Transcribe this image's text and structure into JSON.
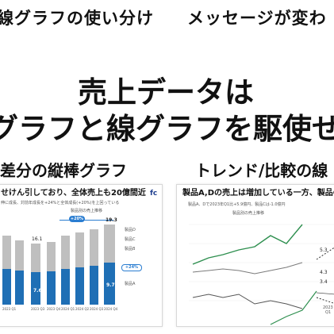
{
  "banner": {
    "left_text": "線グラフの使い分け",
    "right_text": "メッセージが変わ"
  },
  "title": {
    "line1": "売上データは",
    "line2": "グラフと線グラフを駆使せ"
  },
  "left_section": {
    "label": "差分の縦棒グラフ",
    "slide": {
      "heading": "せけん引しており、全体売上も20億間近",
      "subtext": "伸に成長、対前年成長を+24%と全体成長(+20%)を上回っている",
      "chart_caption": "製品別の売上推移",
      "total_label": "19.3",
      "values": {
        "mid_total": "16.1",
        "blue_a": "7.6",
        "blue_b": "9.7"
      },
      "badges": {
        "overall": "+20%",
        "product_a": "+24%"
      },
      "legend": [
        "製品D",
        "製品C",
        "製品B",
        "製品A"
      ],
      "quarters": [
        "2023 Q1",
        "2023 Q2",
        "2023 Q3",
        "2023 Q4",
        "2024 Q1",
        "2024 Q2",
        "2024 Q3",
        "2024 Q4"
      ]
    }
  },
  "right_section": {
    "label": "トレンド/比較の線",
    "slide": {
      "heading": "製品A,Dの売上は増加している一方、製品Cは苦",
      "bullet": "製品A、Dで2023年Q1比+5.9億円、製品Cは-1.0億円",
      "chart_caption": "製品別の売上推移",
      "value_labels": {
        "upper": "5.3",
        "mid": "4.3",
        "low": "3.4"
      },
      "year_label": "2023",
      "quarter_label": "Q1"
    }
  },
  "colors": {
    "accent_blue": "#1f6fb5",
    "gray_bar": "#bfbfbf"
  }
}
